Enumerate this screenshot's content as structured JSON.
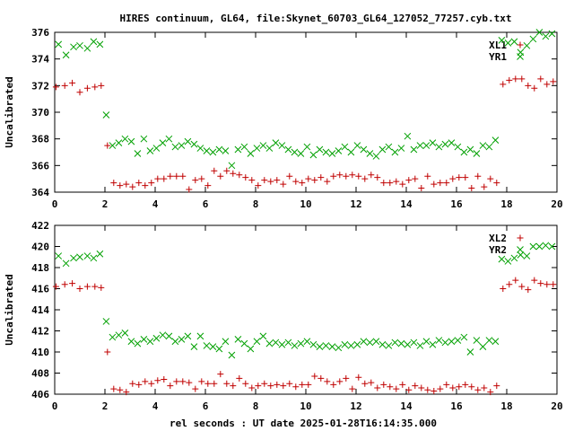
{
  "title": "HIRES continuum, GL64, file:Skynet_60703_GL64_127052_77257.cyb.txt",
  "xlabel": "rel seconds : UT date 2025-01-28T16:14:35.000",
  "colors": {
    "red": "#c00000",
    "green": "#00a000"
  },
  "chart_data": [
    {
      "type": "scatter",
      "ylabel": "Uncalibrated",
      "xlim": [
        0,
        20
      ],
      "ylim": [
        364,
        376
      ],
      "xticks": [
        "0",
        "2",
        "4",
        "6",
        "8",
        "10",
        "12",
        "14",
        "16",
        "18",
        "20"
      ],
      "yticks": [
        "364",
        "366",
        "368",
        "370",
        "372",
        "374",
        "376"
      ],
      "legend_position": "top-right",
      "series": [
        {
          "name": "XL1",
          "marker": "plus",
          "color": "#c00000",
          "x": [
            0.05,
            0.4,
            0.7,
            1.0,
            1.3,
            1.6,
            1.85,
            2.1,
            2.35,
            2.6,
            2.85,
            3.1,
            3.35,
            3.6,
            3.85,
            4.1,
            4.35,
            4.6,
            4.85,
            5.1,
            5.35,
            5.6,
            5.85,
            6.1,
            6.35,
            6.6,
            6.85,
            7.1,
            7.35,
            7.6,
            7.85,
            8.1,
            8.35,
            8.6,
            8.85,
            9.1,
            9.35,
            9.6,
            9.85,
            10.1,
            10.35,
            10.6,
            10.85,
            11.1,
            11.35,
            11.6,
            11.85,
            12.1,
            12.35,
            12.6,
            12.85,
            13.1,
            13.35,
            13.6,
            13.85,
            14.1,
            14.35,
            14.6,
            14.85,
            15.1,
            15.35,
            15.6,
            15.85,
            16.1,
            16.35,
            16.6,
            16.85,
            17.1,
            17.35,
            17.6,
            17.85,
            18.1,
            18.35,
            18.6,
            18.85,
            19.1,
            19.35,
            19.6,
            19.85
          ],
          "y": [
            371.9,
            372.0,
            372.2,
            371.5,
            371.8,
            371.9,
            372.0,
            367.5,
            364.7,
            364.5,
            364.6,
            364.4,
            364.7,
            364.5,
            364.7,
            365.0,
            365.0,
            365.2,
            365.2,
            365.2,
            364.2,
            364.9,
            365.0,
            364.5,
            365.6,
            365.2,
            365.6,
            365.4,
            365.3,
            365.1,
            364.9,
            364.5,
            364.9,
            364.8,
            364.9,
            364.6,
            365.2,
            364.8,
            364.7,
            365.0,
            364.9,
            365.1,
            364.8,
            365.2,
            365.3,
            365.2,
            365.3,
            365.2,
            365.0,
            365.3,
            365.1,
            364.7,
            364.7,
            364.8,
            364.6,
            364.9,
            365.0,
            364.3,
            365.2,
            364.6,
            364.7,
            364.7,
            365.0,
            365.1,
            365.1,
            364.3,
            365.2,
            364.4,
            365.0,
            364.7,
            372.1,
            372.4,
            372.5,
            372.5,
            372.0,
            371.8,
            372.5,
            372.1,
            372.3
          ]
        },
        {
          "name": "YR1",
          "marker": "cross",
          "color": "#00a000",
          "x": [
            0.15,
            0.45,
            0.75,
            1.0,
            1.3,
            1.55,
            1.8,
            2.05,
            2.3,
            2.55,
            2.8,
            3.05,
            3.3,
            3.55,
            3.8,
            4.05,
            4.3,
            4.55,
            4.8,
            5.05,
            5.3,
            5.55,
            5.8,
            6.05,
            6.3,
            6.55,
            6.8,
            7.05,
            7.3,
            7.55,
            7.8,
            8.05,
            8.3,
            8.55,
            8.8,
            9.05,
            9.3,
            9.55,
            9.8,
            10.05,
            10.3,
            10.55,
            10.8,
            11.05,
            11.3,
            11.55,
            11.8,
            12.05,
            12.3,
            12.55,
            12.8,
            13.05,
            13.3,
            13.55,
            13.8,
            14.05,
            14.3,
            14.55,
            14.8,
            15.05,
            15.3,
            15.55,
            15.8,
            16.05,
            16.3,
            16.55,
            16.8,
            17.05,
            17.3,
            17.55,
            17.8,
            18.05,
            18.3,
            18.55,
            18.8,
            19.05,
            19.3,
            19.55,
            19.8
          ],
          "y": [
            375.1,
            374.3,
            374.9,
            375.0,
            374.8,
            375.3,
            375.1,
            369.8,
            367.5,
            367.7,
            368.0,
            367.8,
            366.9,
            368.0,
            367.1,
            367.3,
            367.7,
            368.0,
            367.4,
            367.5,
            367.8,
            367.6,
            367.3,
            367.1,
            367.0,
            367.2,
            367.1,
            366.0,
            367.2,
            367.4,
            366.9,
            367.3,
            367.5,
            367.3,
            367.7,
            367.5,
            367.2,
            367.0,
            366.9,
            367.4,
            366.8,
            367.2,
            367.0,
            366.9,
            367.1,
            367.4,
            367.0,
            367.5,
            367.2,
            366.9,
            366.7,
            367.2,
            367.4,
            367.0,
            367.3,
            368.2,
            367.2,
            367.5,
            367.5,
            367.7,
            367.4,
            367.6,
            367.7,
            367.4,
            367.0,
            367.2,
            366.9,
            367.5,
            367.4,
            367.9,
            375.4,
            375.2,
            375.3,
            374.5,
            375.0,
            375.5,
            376.0,
            375.7,
            375.9
          ]
        }
      ]
    },
    {
      "type": "scatter",
      "ylabel": "Uncalibrated",
      "xlim": [
        0,
        20
      ],
      "ylim": [
        406,
        422
      ],
      "xticks": [
        "0",
        "2",
        "4",
        "6",
        "8",
        "10",
        "12",
        "14",
        "16",
        "18",
        "20"
      ],
      "yticks": [
        "406",
        "408",
        "410",
        "412",
        "414",
        "416",
        "418",
        "420",
        "422"
      ],
      "legend_position": "top-right",
      "series": [
        {
          "name": "XL2",
          "marker": "plus",
          "color": "#c00000",
          "x": [
            0.05,
            0.4,
            0.7,
            1.0,
            1.3,
            1.6,
            1.85,
            2.1,
            2.35,
            2.6,
            2.85,
            3.1,
            3.35,
            3.6,
            3.85,
            4.1,
            4.35,
            4.6,
            4.85,
            5.1,
            5.35,
            5.6,
            5.85,
            6.1,
            6.35,
            6.6,
            6.85,
            7.1,
            7.35,
            7.6,
            7.85,
            8.1,
            8.35,
            8.6,
            8.85,
            9.1,
            9.35,
            9.6,
            9.85,
            10.1,
            10.35,
            10.6,
            10.85,
            11.1,
            11.35,
            11.6,
            11.85,
            12.1,
            12.35,
            12.6,
            12.85,
            13.1,
            13.35,
            13.6,
            13.85,
            14.1,
            14.35,
            14.6,
            14.85,
            15.1,
            15.35,
            15.6,
            15.85,
            16.1,
            16.35,
            16.6,
            16.85,
            17.1,
            17.35,
            17.6,
            17.85,
            18.1,
            18.35,
            18.6,
            18.85,
            19.1,
            19.35,
            19.6,
            19.85
          ],
          "y": [
            416.2,
            416.4,
            416.5,
            416.0,
            416.2,
            416.2,
            416.1,
            410.0,
            406.5,
            406.4,
            406.2,
            407.0,
            406.9,
            407.2,
            407.0,
            407.3,
            407.4,
            406.8,
            407.2,
            407.2,
            407.1,
            406.5,
            407.2,
            407.0,
            407.0,
            407.9,
            407.0,
            406.8,
            407.5,
            407.0,
            406.6,
            406.8,
            407.0,
            406.8,
            406.9,
            406.8,
            407.0,
            406.7,
            406.9,
            406.9,
            407.7,
            407.5,
            407.2,
            406.9,
            407.2,
            407.5,
            406.5,
            407.6,
            407.0,
            407.1,
            406.6,
            406.9,
            406.7,
            406.5,
            406.9,
            406.4,
            406.8,
            406.6,
            406.4,
            406.3,
            406.5,
            406.9,
            406.6,
            406.7,
            406.9,
            406.7,
            406.4,
            406.6,
            406.2,
            406.8,
            416.0,
            416.4,
            416.8,
            416.2,
            415.9,
            416.8,
            416.5,
            416.4,
            416.4
          ]
        },
        {
          "name": "YR2",
          "marker": "cross",
          "color": "#00a000",
          "x": [
            0.15,
            0.45,
            0.75,
            1.0,
            1.3,
            1.55,
            1.8,
            2.05,
            2.3,
            2.55,
            2.8,
            3.05,
            3.3,
            3.55,
            3.8,
            4.05,
            4.3,
            4.55,
            4.8,
            5.05,
            5.3,
            5.55,
            5.8,
            6.05,
            6.3,
            6.55,
            6.8,
            7.05,
            7.3,
            7.55,
            7.8,
            8.05,
            8.3,
            8.55,
            8.8,
            9.05,
            9.3,
            9.55,
            9.8,
            10.05,
            10.3,
            10.55,
            10.8,
            11.05,
            11.3,
            11.55,
            11.8,
            12.05,
            12.3,
            12.55,
            12.8,
            13.05,
            13.3,
            13.55,
            13.8,
            14.05,
            14.3,
            14.55,
            14.8,
            15.05,
            15.3,
            15.55,
            15.8,
            16.05,
            16.3,
            16.55,
            16.8,
            17.05,
            17.3,
            17.55,
            17.8,
            18.05,
            18.3,
            18.55,
            18.8,
            19.05,
            19.3,
            19.55,
            19.8
          ],
          "y": [
            419.1,
            418.4,
            418.9,
            419.0,
            419.1,
            418.9,
            419.3,
            412.9,
            411.4,
            411.6,
            411.8,
            411.0,
            410.8,
            411.2,
            411.0,
            411.3,
            411.6,
            411.5,
            411.0,
            411.2,
            411.5,
            410.5,
            411.5,
            410.6,
            410.5,
            410.3,
            411.0,
            409.7,
            411.2,
            410.8,
            410.3,
            411.0,
            411.5,
            410.8,
            410.9,
            410.7,
            410.9,
            410.6,
            410.8,
            411.0,
            410.7,
            410.5,
            410.6,
            410.5,
            410.4,
            410.7,
            410.6,
            410.7,
            411.0,
            410.9,
            411.0,
            410.7,
            410.6,
            410.9,
            410.8,
            410.7,
            410.9,
            410.6,
            411.0,
            410.7,
            411.1,
            410.9,
            411.0,
            411.1,
            411.4,
            410.0,
            411.1,
            410.5,
            411.1,
            411.0,
            418.8,
            418.6,
            418.9,
            419.2,
            419.1,
            420.0,
            420.0,
            420.1,
            420.0
          ]
        }
      ]
    }
  ]
}
